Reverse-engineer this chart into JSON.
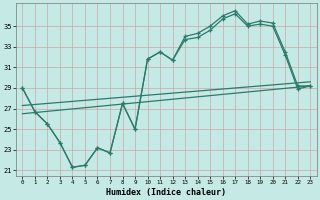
{
  "xlabel": "Humidex (Indice chaleur)",
  "bg_color": "#c5eae5",
  "grid_color": "#c8a8a8",
  "line_color": "#2d7a6a",
  "xlim": [
    -0.5,
    23.5
  ],
  "ylim": [
    20.5,
    37.2
  ],
  "yticks": [
    21,
    23,
    25,
    27,
    29,
    31,
    33,
    35
  ],
  "xticks": [
    0,
    1,
    2,
    3,
    4,
    5,
    6,
    7,
    8,
    9,
    10,
    11,
    12,
    13,
    14,
    15,
    16,
    17,
    18,
    19,
    20,
    21,
    22,
    23
  ],
  "upper1_x": [
    0,
    1,
    2,
    3,
    4,
    5,
    6,
    7,
    8,
    9,
    10,
    11,
    12,
    13,
    14,
    15,
    16,
    17,
    18,
    19,
    20,
    21,
    22,
    23
  ],
  "upper1_y": [
    29.0,
    26.7,
    25.5,
    23.7,
    21.3,
    21.5,
    23.2,
    22.7,
    27.5,
    25.0,
    31.8,
    32.5,
    31.7,
    34.0,
    34.3,
    35.0,
    36.0,
    36.5,
    35.2,
    35.5,
    35.3,
    32.5,
    29.2,
    29.2
  ],
  "upper2_y": [
    29.0,
    26.7,
    25.5,
    23.7,
    21.3,
    21.5,
    23.2,
    22.7,
    27.5,
    25.0,
    31.8,
    32.5,
    31.7,
    33.7,
    33.9,
    34.6,
    35.7,
    36.2,
    35.0,
    35.2,
    35.0,
    32.2,
    28.9,
    29.2
  ],
  "trend1_x": [
    0,
    23
  ],
  "trend1_y": [
    26.5,
    29.2
  ],
  "trend2_x": [
    0,
    23
  ],
  "trend2_y": [
    27.3,
    29.6
  ]
}
